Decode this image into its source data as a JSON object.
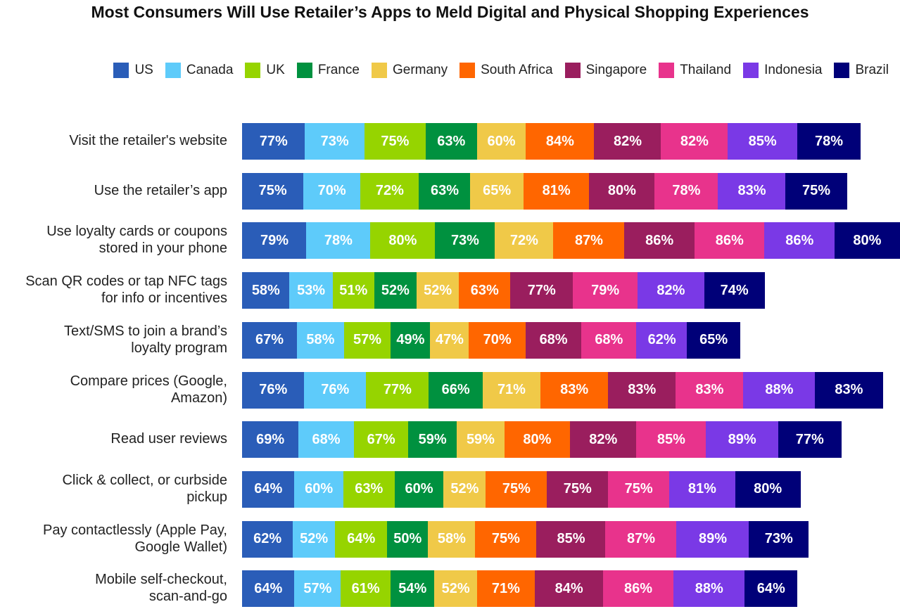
{
  "chart_data": {
    "type": "bar",
    "orientation": "horizontal-stacked",
    "title": "Most Consumers Will Use Retailer’s Apps to Meld Digital and Physical Shopping Experiences",
    "legend_position": "top-right",
    "series_names": [
      "US",
      "Canada",
      "UK",
      "France",
      "Germany",
      "South Africa",
      "Singapore",
      "Thailand",
      "Indonesia",
      "Brazil"
    ],
    "colors": [
      "#2a5db8",
      "#5ecbfa",
      "#96d400",
      "#00913f",
      "#f0c948",
      "#ff6600",
      "#9a1e5e",
      "#e8338c",
      "#7a39e6",
      "#000078"
    ],
    "categories": [
      "Visit the retailer's website",
      "Use the retailer’s app",
      "Use loyalty cards or coupons\nstored in your phone",
      "Scan QR codes or tap NFC tags\nfor info or incentives",
      "Text/SMS to join a brand’s\nloyalty program",
      "Compare prices (Google,\nAmazon)",
      "Read user reviews",
      "Click & collect, or curbside\npickup",
      "Pay contactlessly (Apple Pay,\nGoogle Wallet)",
      "Mobile self-checkout,\nscan-and-go"
    ],
    "values": [
      [
        77,
        73,
        75,
        63,
        60,
        84,
        82,
        82,
        85,
        78
      ],
      [
        75,
        70,
        72,
        63,
        65,
        81,
        80,
        78,
        83,
        75
      ],
      [
        79,
        78,
        80,
        73,
        72,
        87,
        86,
        86,
        86,
        80
      ],
      [
        58,
        53,
        51,
        52,
        52,
        63,
        77,
        79,
        82,
        74
      ],
      [
        67,
        58,
        57,
        49,
        47,
        70,
        68,
        68,
        62,
        65
      ],
      [
        76,
        76,
        77,
        66,
        71,
        83,
        83,
        83,
        88,
        83
      ],
      [
        69,
        68,
        67,
        59,
        59,
        80,
        82,
        85,
        89,
        77
      ],
      [
        64,
        60,
        63,
        60,
        52,
        75,
        75,
        75,
        81,
        80
      ],
      [
        62,
        52,
        64,
        50,
        58,
        75,
        85,
        87,
        89,
        73
      ],
      [
        64,
        57,
        61,
        54,
        52,
        71,
        84,
        86,
        88,
        64
      ]
    ],
    "unit": "%"
  }
}
